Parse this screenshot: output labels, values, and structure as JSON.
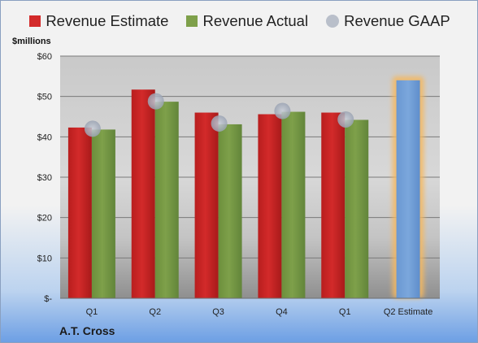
{
  "legend": {
    "estimate_label": "Revenue Estimate",
    "actual_label": "Revenue Actual",
    "gaap_label": "Revenue GAAP"
  },
  "colors": {
    "estimate": "#d32a2a",
    "actual": "#7ea04a",
    "gaap": "#9aa3b3",
    "forecast": "#7ba7dc",
    "forecast_glow": "#f4b860"
  },
  "unit_label": "$millions",
  "company": "A.T. Cross",
  "chart_data": {
    "type": "bar",
    "categories": [
      "Q1",
      "Q2",
      "Q3",
      "Q4",
      "Q1",
      "Q2 Estimate"
    ],
    "series": [
      {
        "name": "Revenue Estimate",
        "values": [
          42.3,
          51.7,
          46.0,
          45.6,
          46.0,
          null
        ]
      },
      {
        "name": "Revenue Actual",
        "values": [
          41.8,
          48.7,
          43.1,
          46.2,
          44.2,
          null
        ]
      },
      {
        "name": "Revenue GAAP",
        "values": [
          42.0,
          48.8,
          43.3,
          46.4,
          44.3,
          null
        ]
      }
    ],
    "forecast": {
      "category": "Q2 Estimate",
      "value": 54.0
    },
    "y_ticks": [
      "$-",
      "$10",
      "$20",
      "$30",
      "$40",
      "$50",
      "$60"
    ],
    "ylim": [
      0,
      60
    ],
    "grid": true,
    "legend_position": "top"
  }
}
